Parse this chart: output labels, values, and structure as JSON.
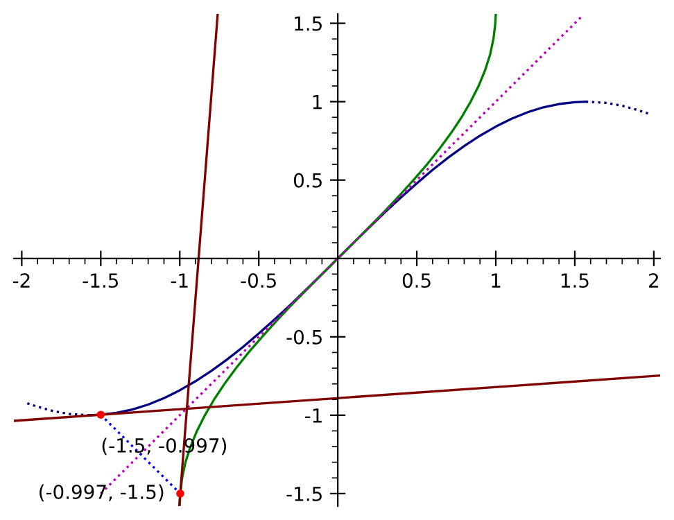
{
  "chart_data": {
    "type": "line",
    "xlim": [
      -2.05,
      2.04
    ],
    "ylim": [
      -1.58,
      1.56
    ],
    "xticks": [
      -2,
      -1.5,
      -1,
      -0.5,
      0.5,
      1,
      1.5,
      2
    ],
    "yticks": [
      -1.5,
      -1,
      -0.5,
      0.5,
      1,
      1.5
    ],
    "grid": false,
    "legend": false,
    "series": [
      {
        "color": "#000080",
        "line_style": "dotted",
        "x": [
          -1.965,
          -1.9,
          -1.8,
          -1.7,
          -1.57
        ],
        "values": [
          -0.924,
          -0.946,
          -0.974,
          -0.992,
          -1.0
        ]
      },
      {
        "color": "#000080",
        "line_style": "solid",
        "x": [
          -1.57,
          -1.5,
          -1.4,
          -1.3,
          -1.2,
          -1.1,
          -1.0,
          -0.9,
          -0.8,
          -0.7,
          -0.6,
          -0.5,
          -0.4,
          -0.3,
          -0.2,
          -0.1,
          0,
          0.1,
          0.2,
          0.3,
          0.4,
          0.5,
          0.6,
          0.7,
          0.8,
          0.9,
          1.0,
          1.1,
          1.2,
          1.3,
          1.4,
          1.5,
          1.57
        ],
        "values": [
          -1.0,
          -0.997,
          -0.985,
          -0.964,
          -0.932,
          -0.891,
          -0.841,
          -0.783,
          -0.717,
          -0.644,
          -0.565,
          -0.479,
          -0.389,
          -0.296,
          -0.199,
          -0.1,
          0,
          0.1,
          0.199,
          0.296,
          0.389,
          0.479,
          0.565,
          0.644,
          0.717,
          0.783,
          0.841,
          0.891,
          0.932,
          0.964,
          0.985,
          0.997,
          1.0
        ]
      },
      {
        "color": "#000080",
        "line_style": "dotted",
        "x": [
          1.57,
          1.7,
          1.8,
          1.9,
          1.965
        ],
        "values": [
          1.0,
          0.992,
          0.974,
          0.946,
          0.924
        ]
      },
      {
        "color": "#008000",
        "line_style": "solid",
        "x": [
          -1.0,
          -0.997,
          -0.985,
          -0.964,
          -0.932,
          -0.891,
          -0.841,
          -0.783,
          -0.717,
          -0.644,
          -0.565,
          -0.479,
          -0.389,
          -0.296,
          -0.199,
          -0.1,
          0,
          0.1,
          0.199,
          0.296,
          0.389,
          0.479,
          0.565,
          0.644,
          0.717,
          0.783,
          0.841,
          0.891,
          0.932,
          0.964,
          0.985,
          0.997,
          0.9999
        ],
        "values": [
          -1.57,
          -1.5,
          -1.4,
          -1.3,
          -1.2,
          -1.1,
          -1.0,
          -0.9,
          -0.8,
          -0.7,
          -0.6,
          -0.5,
          -0.4,
          -0.3,
          -0.2,
          -0.1,
          0,
          0.1,
          0.2,
          0.3,
          0.4,
          0.5,
          0.6,
          0.7,
          0.8,
          0.9,
          1.0,
          1.1,
          1.2,
          1.3,
          1.4,
          1.5,
          1.557
        ]
      },
      {
        "color": "#bf00bf",
        "line_style": "dotted",
        "x": [
          -1.5,
          1.55
        ],
        "values": [
          -1.5,
          1.55
        ]
      },
      {
        "color": "#800000",
        "line_style": "solid",
        "x": [
          -2.05,
          2.04
        ],
        "values": [
          -1.036,
          -0.747
        ]
      },
      {
        "color": "#800000",
        "line_style": "solid",
        "x": [
          -1.003,
          -0.76
        ],
        "values": [
          -1.577,
          1.56
        ]
      },
      {
        "color": "#0000ff",
        "line_style": "dotted",
        "x": [
          -1.5,
          -0.997
        ],
        "values": [
          -0.997,
          -1.5
        ]
      },
      {
        "type": "scatter",
        "color": "#ff0000",
        "marker": "circle",
        "x": [
          -1.5,
          -0.997
        ],
        "values": [
          -0.997,
          -1.5
        ]
      }
    ],
    "annotations": [
      {
        "text": "(-1.5, -0.997)",
        "x": -1.5,
        "y": -0.997
      },
      {
        "text": "(-0.997, -1.5)",
        "x": -0.997,
        "y": -1.5
      }
    ]
  }
}
